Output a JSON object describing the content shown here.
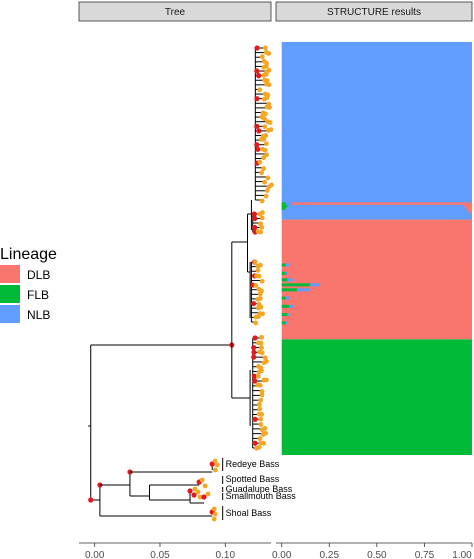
{
  "chart_data": [
    {
      "type": "tree",
      "panel_title": "Tree",
      "x_ticks": [
        0.0,
        0.05,
        0.1
      ],
      "x_tick_labels": [
        "0.00",
        "0.05",
        "0.10"
      ],
      "xlim": [
        -0.012,
        0.135
      ],
      "colors": {
        "branch": "#000000",
        "node": "#e31a1c",
        "tip": "#f5a623"
      },
      "outgroup_labels": [
        "Redeye Bass",
        "Spotted Bass",
        "Guadalupe Bass",
        "Smallmouth Bass",
        "Shoal Bass"
      ]
    },
    {
      "type": "bar",
      "orientation": "horizontal-stacked",
      "panel_title": "STRUCTURE results",
      "x_ticks": [
        0.0,
        0.25,
        0.5,
        0.75,
        1.0
      ],
      "x_tick_labels": [
        "0.00",
        "0.25",
        "0.50",
        "0.75",
        "1.00"
      ],
      "xlim": [
        -0.03,
        1.0
      ],
      "legend": {
        "title": "Lineage",
        "position": "left",
        "entries": [
          {
            "label": "DLB",
            "color": "#f8766d"
          },
          {
            "label": "FLB",
            "color": "#00ba38"
          },
          {
            "label": "NLB",
            "color": "#619cff"
          }
        ]
      },
      "series": [
        {
          "name": "NLB",
          "color": "#619cff",
          "block_start": 0.0,
          "block_end": 0.43
        },
        {
          "name": "DLB",
          "color": "#f8766d",
          "block_start": 0.43,
          "block_end": 0.72
        },
        {
          "name": "FLB",
          "color": "#00ba38",
          "block_start": 0.72,
          "block_end": 1.0
        }
      ],
      "admixed_individuals": [
        {
          "row": 0.392,
          "DLB": 0.95,
          "FLB": 0.02,
          "NLB": 0.03
        },
        {
          "row": 0.398,
          "DLB": 0.04,
          "FLB": 0.03,
          "NLB": 0.93
        },
        {
          "row": 0.404,
          "DLB": 0.03,
          "FLB": 0.02,
          "NLB": 0.95
        },
        {
          "row": 0.41,
          "DLB": 0.02,
          "FLB": 0.0,
          "NLB": 0.98
        },
        {
          "row": 0.54,
          "DLB": 0.96,
          "FLB": 0.02,
          "NLB": 0.02
        },
        {
          "row": 0.56,
          "DLB": 0.97,
          "FLB": 0.02,
          "NLB": 0.01
        },
        {
          "row": 0.576,
          "DLB": 0.94,
          "FLB": 0.03,
          "NLB": 0.03
        },
        {
          "row": 0.588,
          "DLB": 0.8,
          "FLB": 0.15,
          "NLB": 0.05
        },
        {
          "row": 0.6,
          "DLB": 0.85,
          "FLB": 0.08,
          "NLB": 0.07
        },
        {
          "row": 0.62,
          "DLB": 0.96,
          "FLB": 0.02,
          "NLB": 0.02
        },
        {
          "row": 0.64,
          "DLB": 0.94,
          "FLB": 0.04,
          "NLB": 0.02
        },
        {
          "row": 0.66,
          "DLB": 0.96,
          "FLB": 0.03,
          "NLB": 0.01
        },
        {
          "row": 0.68,
          "DLB": 0.97,
          "FLB": 0.02,
          "NLB": 0.01
        }
      ]
    }
  ]
}
